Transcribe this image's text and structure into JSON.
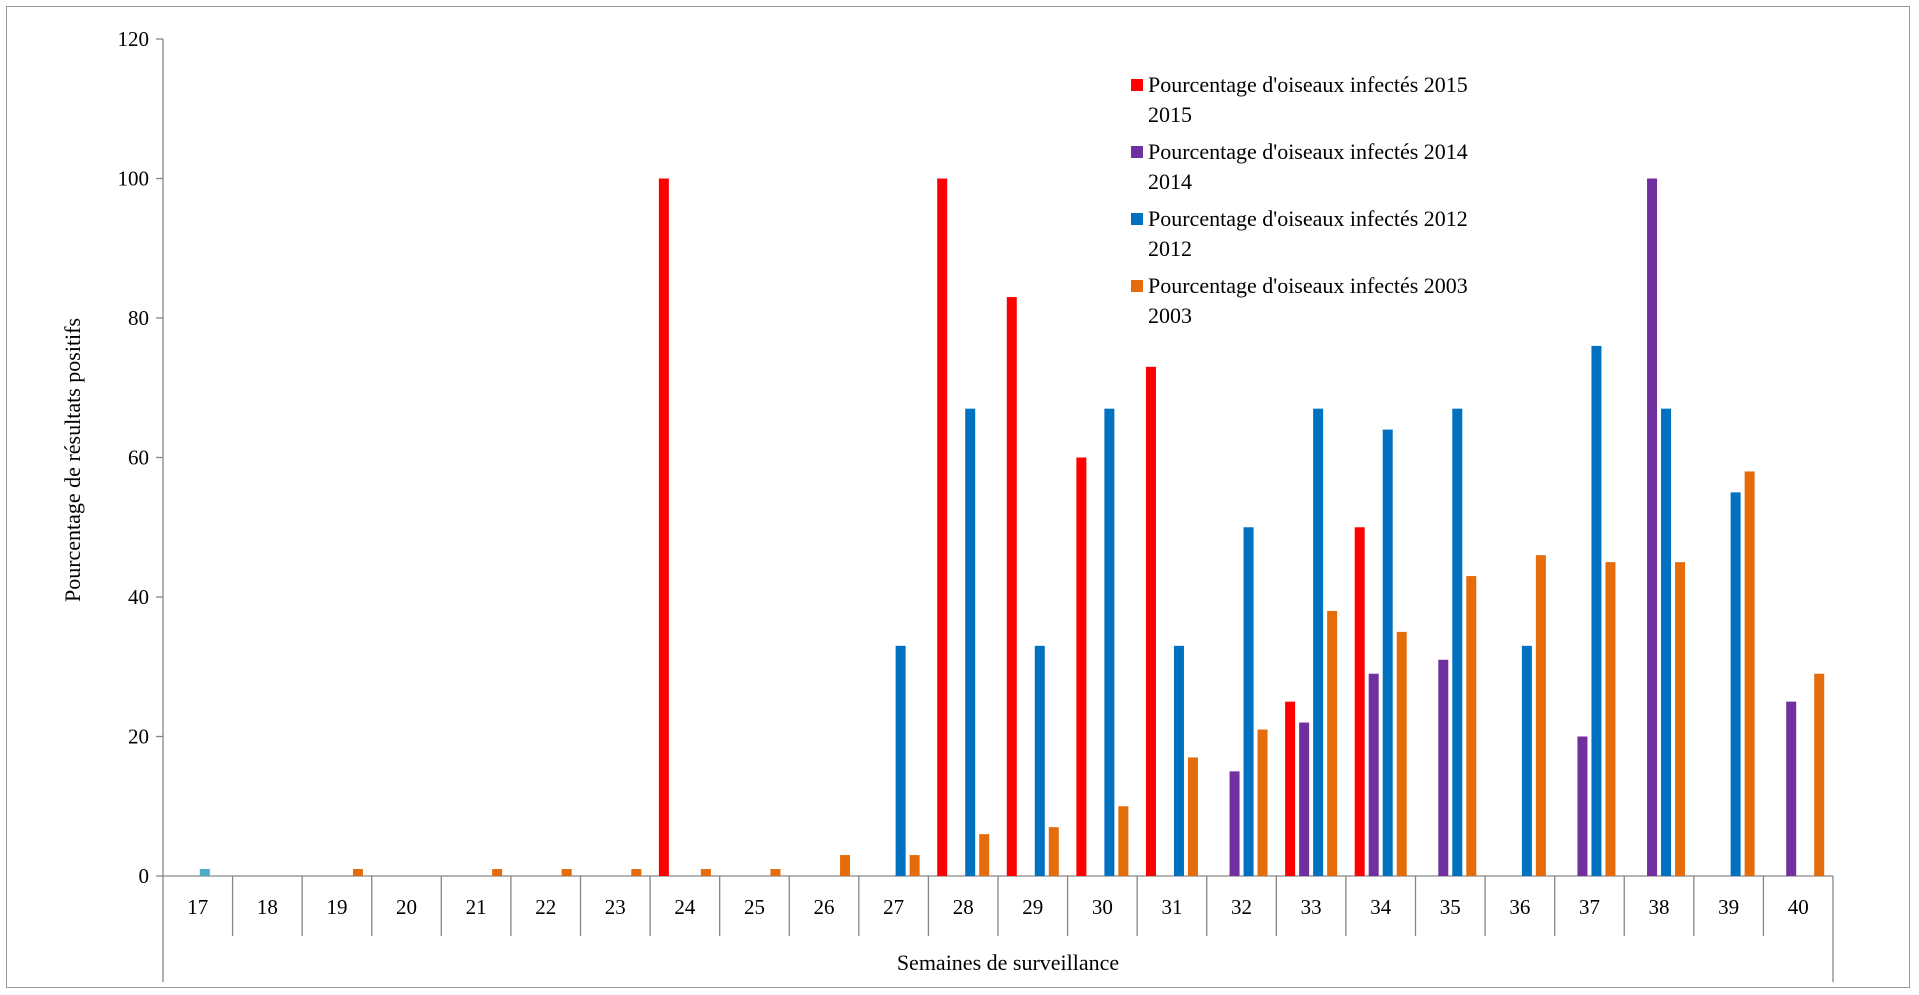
{
  "chart_data": {
    "type": "bar",
    "title": "",
    "xlabel": "Semaines de surveillance",
    "ylabel": "Pourcentage de résultats positifs",
    "ylim": [
      0,
      120
    ],
    "yticks": [
      0,
      20,
      40,
      60,
      80,
      100,
      120
    ],
    "grid": false,
    "legend_position": "top-right",
    "categories": [
      "17",
      "18",
      "19",
      "20",
      "21",
      "22",
      "23",
      "24",
      "25",
      "26",
      "27",
      "28",
      "29",
      "30",
      "31",
      "32",
      "33",
      "34",
      "35",
      "36",
      "37",
      "38",
      "39",
      "40"
    ],
    "series": [
      {
        "name": "Pourcentage d'oiseaux infectés 2015 2015",
        "legend_lines": [
          "Pourcentage d'oiseaux infectés 2015",
          "2015"
        ],
        "color": "#ff0000",
        "values": [
          null,
          null,
          null,
          null,
          null,
          null,
          null,
          100,
          null,
          null,
          null,
          100,
          83,
          60,
          73,
          null,
          25,
          50,
          null,
          null,
          null,
          null,
          null,
          null
        ]
      },
      {
        "name": "Pourcentage d'oiseaux infectés 2014 2014",
        "legend_lines": [
          "Pourcentage d'oiseaux infectés  2014",
          "2014"
        ],
        "color": "#7030a0",
        "values": [
          null,
          null,
          null,
          null,
          null,
          null,
          null,
          null,
          null,
          null,
          null,
          null,
          null,
          null,
          null,
          15,
          22,
          29,
          31,
          null,
          20,
          100,
          null,
          25
        ]
      },
      {
        "name": "Pourcentage d'oiseaux infectés 2012 2012",
        "legend_lines": [
          "Pourcentage d'oiseaux infectés 2012",
          "2012"
        ],
        "color": "#0070c0",
        "values": [
          1,
          null,
          null,
          null,
          null,
          null,
          null,
          null,
          null,
          null,
          33,
          67,
          33,
          67,
          33,
          50,
          67,
          64,
          67,
          33,
          76,
          67,
          55,
          null
        ]
      },
      {
        "name": "Pourcentage d'oiseaux infectés 2003 2003",
        "legend_lines": [
          "Pourcentage d'oiseaux infectés 2003",
          "2003"
        ],
        "color": "#e46c0a",
        "values": [
          null,
          null,
          1,
          null,
          1,
          1,
          1,
          1,
          1,
          3,
          3,
          6,
          7,
          10,
          17,
          21,
          38,
          35,
          43,
          46,
          45,
          45,
          58,
          29
        ]
      }
    ],
    "special_bar": {
      "category": "17",
      "series_index": 2,
      "color": "#4bacc6"
    }
  }
}
